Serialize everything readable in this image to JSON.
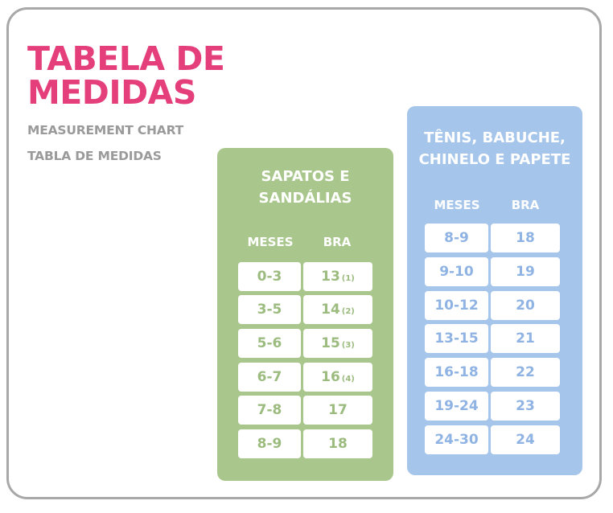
{
  "title": {
    "line1": "TABELA DE",
    "line2": "MEDIDAS"
  },
  "subtitles": {
    "en": "MEASUREMENT CHART",
    "es": "TABLA DE MEDIDAS"
  },
  "colors": {
    "title": "#e43f7b",
    "subtitle": "#9a9a9a",
    "green_panel": "#a9c78d",
    "blue_panel": "#a6c5ea",
    "frame": "#a8a8a8"
  },
  "sapatos": {
    "title_line1": "SAPATOS E",
    "title_line2": "SANDÁLIAS",
    "headers": {
      "months": "MESES",
      "size": "BRA"
    },
    "rows": [
      {
        "months": "0-3",
        "size": "13",
        "note": "(1)"
      },
      {
        "months": "3-5",
        "size": "14",
        "note": "(2)"
      },
      {
        "months": "5-6",
        "size": "15",
        "note": "(3)"
      },
      {
        "months": "6-7",
        "size": "16",
        "note": "(4)"
      },
      {
        "months": "7-8",
        "size": "17",
        "note": ""
      },
      {
        "months": "8-9",
        "size": "18",
        "note": ""
      }
    ]
  },
  "tenis": {
    "title_line1": "TÊNIS, BABUCHE,",
    "title_line2": "CHINELO E PAPETE",
    "headers": {
      "months": "MESES",
      "size": "BRA"
    },
    "rows": [
      {
        "months": "8-9",
        "size": "18"
      },
      {
        "months": "9-10",
        "size": "19"
      },
      {
        "months": "10-12",
        "size": "20"
      },
      {
        "months": "13-15",
        "size": "21"
      },
      {
        "months": "16-18",
        "size": "22"
      },
      {
        "months": "19-24",
        "size": "23"
      },
      {
        "months": "24-30",
        "size": "24"
      }
    ]
  }
}
